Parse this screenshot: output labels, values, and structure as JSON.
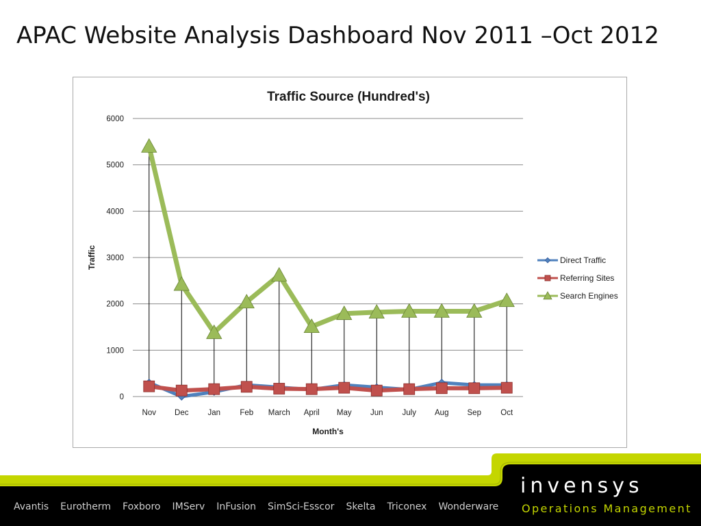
{
  "slide": {
    "title": "APAC Website Analysis Dashboard Nov 2011 –Oct 2012"
  },
  "chart_data": {
    "type": "line",
    "title": "Traffic Source (Hundred's)",
    "xlabel": "Month's",
    "ylabel": "Traffic",
    "categories": [
      "Nov",
      "Dec",
      "Jan",
      "Feb",
      "March",
      "April",
      "May",
      "Jun",
      "July",
      "Aug",
      "Sep",
      "Oct"
    ],
    "ylim": [
      0,
      6000
    ],
    "yticks": [
      0,
      1000,
      2000,
      3000,
      4000,
      5000,
      6000
    ],
    "grid": true,
    "drop_lines": true,
    "legend_position": "right",
    "series": [
      {
        "name": "Direct Traffic",
        "color": "#4f81bd",
        "marker": "diamond",
        "values": [
          300,
          0,
          100,
          250,
          200,
          150,
          250,
          200,
          150,
          300,
          250,
          250
        ]
      },
      {
        "name": "Referring Sites",
        "color": "#c0504d",
        "marker": "square",
        "values": [
          220,
          130,
          160,
          210,
          170,
          160,
          190,
          130,
          160,
          180,
          180,
          190
        ]
      },
      {
        "name": "Search Engines",
        "color": "#9bbb59",
        "marker": "triangle",
        "values": [
          5400,
          2420,
          1380,
          2040,
          2620,
          1510,
          1790,
          1820,
          1840,
          1840,
          1840,
          2070
        ]
      }
    ]
  },
  "footer": {
    "brands": [
      "Avantis",
      "Eurotherm",
      "Foxboro",
      "IMServ",
      "InFusion",
      "SimSci-Esscor",
      "Skelta",
      "Triconex",
      "Wonderware"
    ],
    "logo_text": "invensys",
    "logo_tagline": "Operations Management",
    "accent_color": "#c4d600",
    "band_color": "#000000"
  }
}
